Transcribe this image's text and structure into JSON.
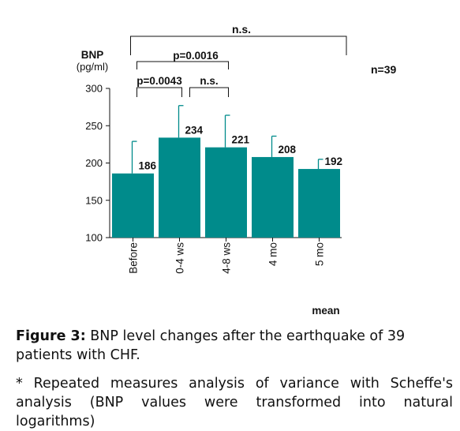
{
  "chart_data": {
    "type": "bar",
    "title": "",
    "ylabel": "BNP",
    "yunit": "(pg/ml)",
    "xlabel": "",
    "categories": [
      "Before",
      "0-4 ws",
      "4-8 ws",
      "4 mo",
      "5 mo"
    ],
    "values": [
      186,
      234,
      221,
      208,
      192
    ],
    "error_upper": [
      229,
      277,
      264,
      236,
      205
    ],
    "value_labels": [
      "186",
      "234",
      "221",
      "208",
      "192"
    ],
    "ylim": [
      100,
      300
    ],
    "yticks": [
      100,
      150,
      200,
      250,
      300
    ],
    "bar_color": "#008b8b",
    "sample_note": "n=39",
    "footer_label": "mean",
    "significance": [
      {
        "from": "Before",
        "to": "0-4 ws",
        "label": "p=0.0043"
      },
      {
        "from": "0-4 ws",
        "to": "4-8 ws",
        "label": "n.s."
      },
      {
        "from": "Before",
        "to": "4-8 ws",
        "label": "p=0.0016"
      },
      {
        "from": "Before",
        "to": "5 mo",
        "label": "n.s."
      }
    ]
  },
  "caption": {
    "figure_label": "Figure 3:",
    "text": "BNP level changes after the earthquake of 39 patients with CHF.",
    "note_line1": "* Repeated measures analysis of variance with Scheffe's",
    "note_line2": "analysis (BNP values were transformed into natural logarithms)"
  }
}
